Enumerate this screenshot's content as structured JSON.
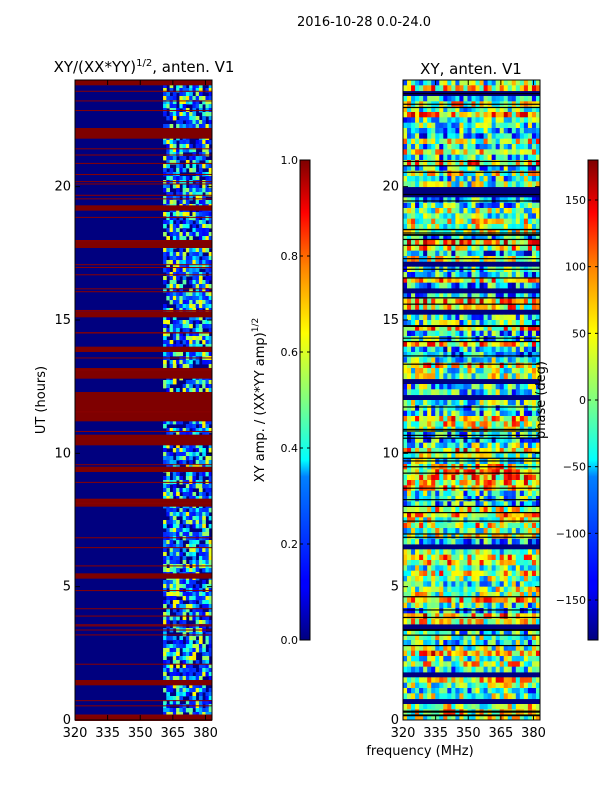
{
  "suptitle": "2016-10-28 0.0-24.0",
  "chart_data": [
    {
      "type": "heatmap",
      "title_main": "XY/(XX*YY)",
      "title_exp": "1/2",
      "title_suffix": ", anten. V1",
      "xlabel": "",
      "ylabel": "UT (hours)",
      "xlim": [
        320,
        383
      ],
      "ylim": [
        0,
        24
      ],
      "x_ticks": [
        320,
        335,
        350,
        365,
        380
      ],
      "y_ticks": [
        0,
        5,
        10,
        15,
        20
      ],
      "colorbar": {
        "label_main": "XY amp. / (XX*YY amp)",
        "label_exp": "1/2",
        "range": [
          0.0,
          1.0
        ],
        "ticks": [
          "0.0",
          "0.2",
          "0.4",
          "0.6",
          "0.8",
          "1.0"
        ],
        "tick_values": [
          0.0,
          0.2,
          0.4,
          0.6,
          0.8,
          1.0
        ],
        "colormap": "jet"
      },
      "flagged_bands_ut_hours": [
        [
          0.0,
          0.2
        ],
        [
          1.3,
          1.5
        ],
        [
          5.3,
          5.5
        ],
        [
          8.0,
          8.3
        ],
        [
          9.3,
          9.5
        ],
        [
          10.3,
          10.7
        ],
        [
          11.2,
          12.3
        ],
        [
          12.8,
          13.2
        ],
        [
          13.8,
          14.0
        ],
        [
          15.1,
          15.3
        ],
        [
          17.7,
          18.0
        ],
        [
          19.1,
          19.3
        ],
        [
          21.8,
          22.2
        ],
        [
          23.8,
          24.0
        ]
      ]
    },
    {
      "type": "heatmap",
      "title": "XY, anten. V1",
      "xlabel": "frequency (MHz)",
      "ylabel": "",
      "xlim": [
        320,
        383
      ],
      "ylim": [
        0,
        24
      ],
      "x_ticks": [
        320,
        335,
        350,
        365,
        380
      ],
      "y_ticks": [
        0,
        5,
        10,
        15,
        20
      ],
      "colorbar": {
        "label": "phase (deg)",
        "range": [
          -180,
          180
        ],
        "ticks": [
          "−150",
          "−100",
          "−50",
          "0",
          "50",
          "100",
          "150"
        ],
        "tick_values": [
          -150,
          -100,
          -50,
          0,
          50,
          100,
          150
        ],
        "colormap": "jet"
      }
    }
  ]
}
